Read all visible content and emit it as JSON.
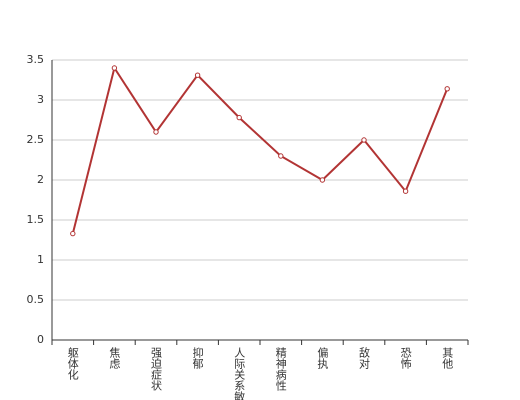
{
  "chart_data": {
    "type": "line",
    "categories": [
      "躯体化",
      "焦虑",
      "强迫症状",
      "抑郁",
      "人际关系敏感",
      "精神病性",
      "偏执",
      "敌对",
      "恐怖",
      "其他"
    ],
    "values": [
      1.33,
      3.4,
      2.6,
      3.31,
      2.78,
      2.3,
      2.0,
      2.5,
      1.86,
      3.14
    ],
    "color": "#b23434",
    "ylim": [
      0,
      3.5
    ],
    "yticks": [
      0,
      0.5,
      1,
      1.5,
      2,
      2.5,
      3,
      3.5
    ],
    "grid": true
  }
}
